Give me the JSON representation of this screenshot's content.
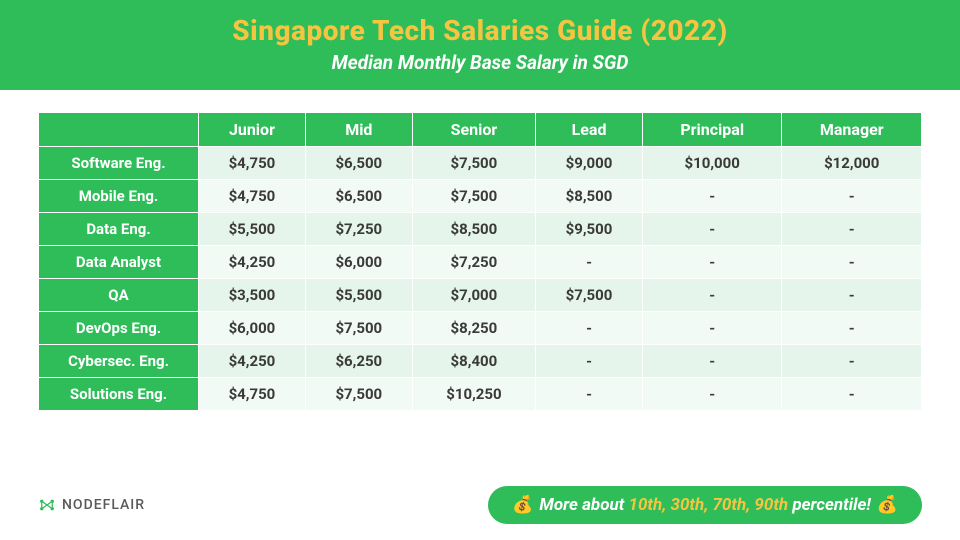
{
  "header": {
    "title": "Singapore Tech Salaries Guide (2022)",
    "subtitle": "Median Monthly Base Salary in SGD",
    "bg_color": "#2ebd59",
    "title_color": "#f5c542",
    "subtitle_color": "#ffffff"
  },
  "table": {
    "columns": [
      "Junior",
      "Mid",
      "Senior",
      "Lead",
      "Principal",
      "Manager"
    ],
    "rows": [
      {
        "label": "Software Eng.",
        "cells": [
          "$4,750",
          "$6,500",
          "$7,500",
          "$9,000",
          "$10,000",
          "$12,000"
        ]
      },
      {
        "label": "Mobile Eng.",
        "cells": [
          "$4,750",
          "$6,500",
          "$7,500",
          "$8,500",
          "-",
          "-"
        ]
      },
      {
        "label": "Data Eng.",
        "cells": [
          "$5,500",
          "$7,250",
          "$8,500",
          "$9,500",
          "-",
          "-"
        ]
      },
      {
        "label": "Data Analyst",
        "cells": [
          "$4,250",
          "$6,000",
          "$7,250",
          "-",
          "-",
          "-"
        ]
      },
      {
        "label": "QA",
        "cells": [
          "$3,500",
          "$5,500",
          "$7,000",
          "$7,500",
          "-",
          "-"
        ]
      },
      {
        "label": "DevOps Eng.",
        "cells": [
          "$6,000",
          "$7,500",
          "$8,250",
          "-",
          "-",
          "-"
        ]
      },
      {
        "label": "Cybersec. Eng.",
        "cells": [
          "$4,250",
          "$6,250",
          "$8,400",
          "-",
          "-",
          "-"
        ]
      },
      {
        "label": "Solutions Eng.",
        "cells": [
          "$4,750",
          "$7,500",
          "$10,250",
          "-",
          "-",
          "-"
        ]
      }
    ],
    "header_bg": "#2ebd59",
    "header_text": "#ffffff",
    "row_even_bg": "#e5f5eb",
    "row_odd_bg": "#f2faf5",
    "cell_text_color": "#3a3a3a"
  },
  "footer": {
    "logo_text": "NODEFLAIR",
    "pill_emoji": "💰",
    "pill_prefix": "More about ",
    "pill_highlight": "10th, 30th, 70th, 90th",
    "pill_suffix": " percentile!",
    "pill_bg": "#2ebd59",
    "pill_highlight_color": "#f5c542"
  }
}
